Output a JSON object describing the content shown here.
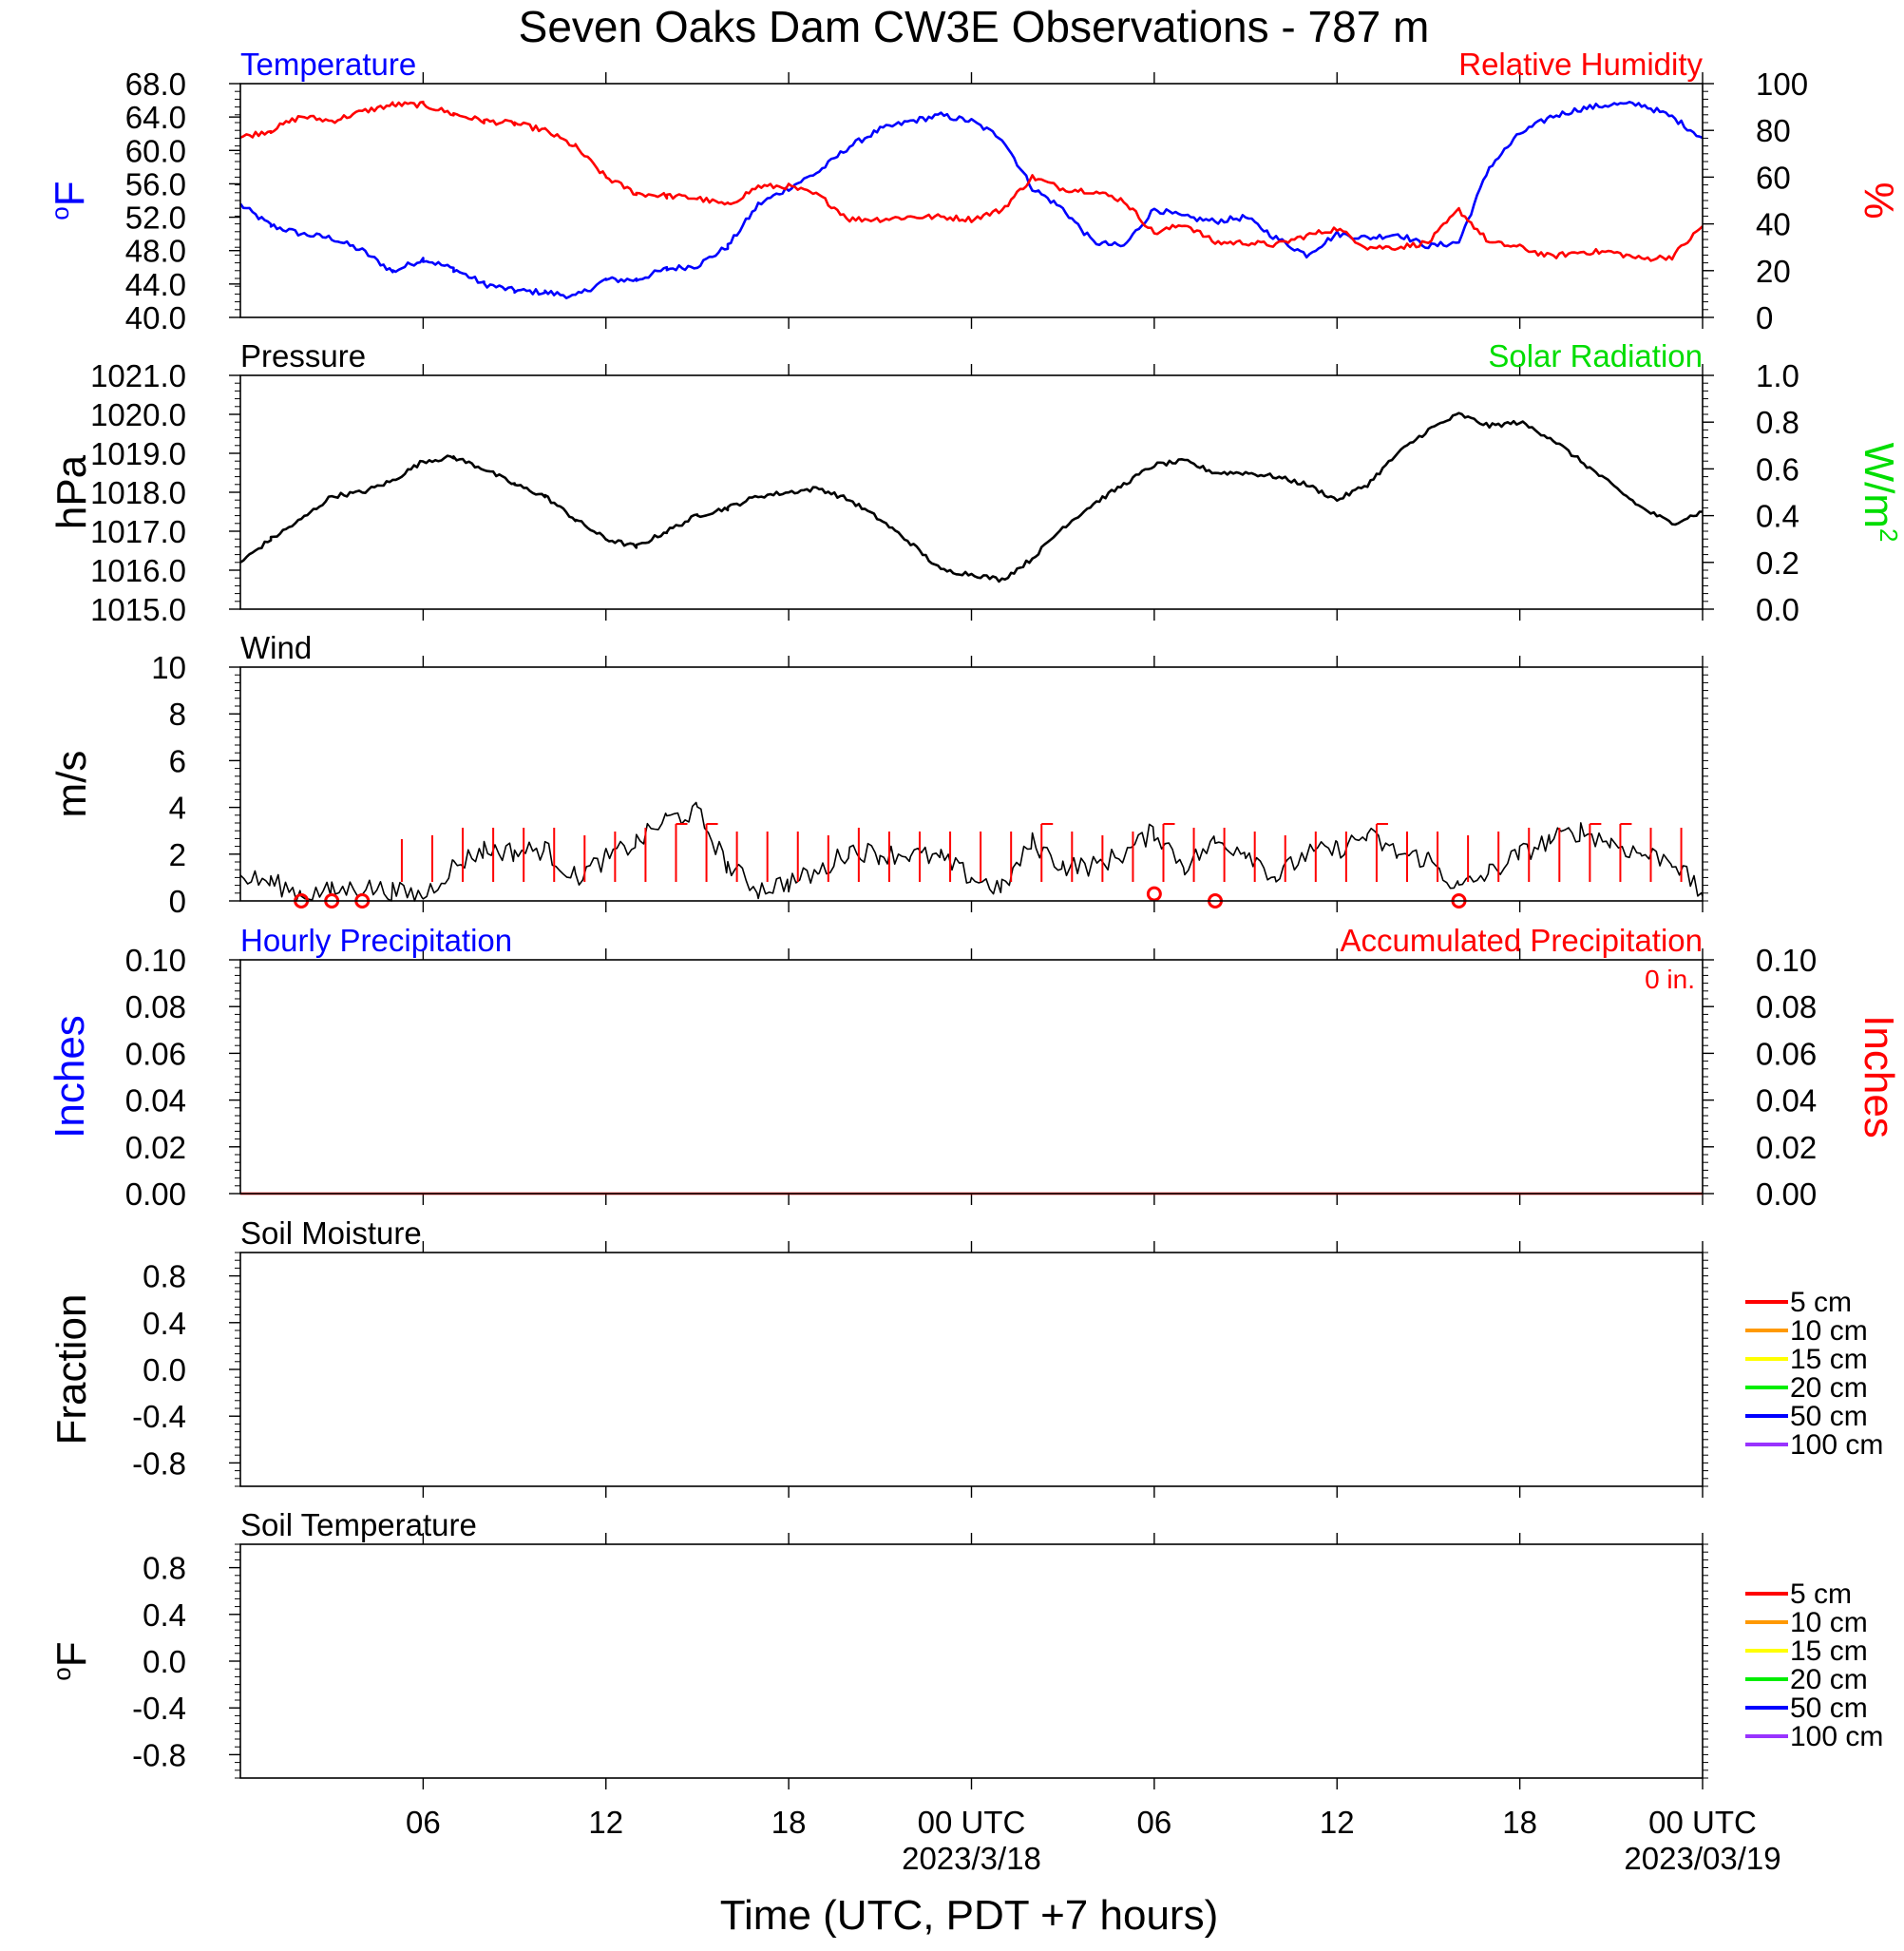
{
  "title": "Seven Oaks Dam CW3E Observations - 787 m",
  "xlabel": "Time (UTC, PDT +7 hours)",
  "x_ticks": [
    {
      "hour": 6,
      "label": "06",
      "sub": ""
    },
    {
      "hour": 12,
      "label": "12",
      "sub": ""
    },
    {
      "hour": 18,
      "label": "18",
      "sub": ""
    },
    {
      "hour": 24,
      "label": "00 UTC",
      "sub": "2023/3/18"
    },
    {
      "hour": 30,
      "label": "06",
      "sub": ""
    },
    {
      "hour": 36,
      "label": "12",
      "sub": ""
    },
    {
      "hour": 42,
      "label": "18",
      "sub": ""
    },
    {
      "hour": 48,
      "label": "00 UTC",
      "sub": "2023/03/19"
    }
  ],
  "chart_data": [
    {
      "type": "line",
      "panel": "temperature-humidity",
      "left_title": "Temperature",
      "right_title": "Relative Humidity",
      "left_ylabel": "oF",
      "right_ylabel": "%",
      "left_color": "#0000ff",
      "right_color": "#ff0000",
      "left_ylim": [
        40,
        68
      ],
      "right_ylim": [
        0,
        100
      ],
      "left_ticks": [
        "40.0",
        "44.0",
        "48.0",
        "52.0",
        "56.0",
        "60.0",
        "64.0",
        "68.0"
      ],
      "right_ticks": [
        "0",
        "20",
        "40",
        "60",
        "80",
        "100"
      ],
      "x_range_hours": [
        0,
        48
      ],
      "series": [
        {
          "name": "Temperature",
          "axis": "left",
          "color": "#0000ff",
          "x": [
            0,
            1,
            2,
            3,
            4,
            5,
            6,
            7,
            8,
            9,
            10,
            11,
            12,
            13,
            14,
            15,
            16,
            17,
            18,
            19,
            20,
            21,
            22,
            23,
            24,
            25,
            26,
            27,
            28,
            29,
            30,
            31,
            32,
            33,
            34,
            35,
            36,
            37,
            38,
            39,
            40,
            41,
            42,
            43,
            44,
            45,
            46,
            47,
            48
          ],
          "y": [
            53.5,
            51,
            50,
            49.5,
            48,
            45.5,
            47,
            45.8,
            44,
            43.2,
            43,
            42.5,
            44.5,
            44.5,
            45.8,
            46.2,
            48.5,
            53.5,
            55.5,
            57.5,
            60.5,
            62.5,
            63.5,
            64.2,
            63.5,
            61.5,
            55.5,
            53,
            49,
            48.5,
            53,
            52,
            51.5,
            52,
            49.5,
            47.5,
            50,
            49.5,
            50,
            48.5,
            49,
            58,
            62,
            64,
            65,
            65.5,
            65.5,
            64,
            61.5
          ]
        },
        {
          "name": "Relative Humidity",
          "axis": "right",
          "color": "#ff0000",
          "x": [
            0,
            1,
            2,
            3,
            4,
            5,
            6,
            7,
            8,
            9,
            10,
            11,
            12,
            13,
            14,
            15,
            16,
            17,
            18,
            19,
            20,
            21,
            22,
            23,
            24,
            25,
            26,
            27,
            28,
            29,
            30,
            31,
            32,
            33,
            34,
            35,
            36,
            37,
            38,
            39,
            40,
            41,
            42,
            43,
            44,
            45,
            46,
            47,
            48
          ],
          "y": [
            77,
            80,
            86,
            84,
            88,
            91,
            91,
            87,
            84,
            83,
            80,
            73,
            60,
            53,
            52,
            51,
            48,
            56,
            56,
            52,
            42,
            42,
            43,
            43,
            42,
            46,
            60,
            55,
            54,
            50,
            36,
            40,
            32,
            32,
            31,
            35,
            38,
            30,
            30,
            32,
            46,
            32,
            30,
            26,
            28,
            28,
            25,
            26,
            39
          ]
        }
      ]
    },
    {
      "type": "line",
      "panel": "pressure-solar",
      "left_title": "Pressure",
      "right_title": "Solar Radiation",
      "left_ylabel": "hPa",
      "right_ylabel": "W/m2",
      "left_color": "#000000",
      "right_color": "#00dd00",
      "left_ylim": [
        1015,
        1021
      ],
      "right_ylim": [
        0,
        1
      ],
      "left_ticks": [
        "1015.0",
        "1016.0",
        "1017.0",
        "1018.0",
        "1019.0",
        "1020.0",
        "1021.0"
      ],
      "right_ticks": [
        "0.0",
        "0.2",
        "0.4",
        "0.6",
        "0.8",
        "1.0"
      ],
      "x_range_hours": [
        0,
        48
      ],
      "series": [
        {
          "name": "Pressure",
          "axis": "left",
          "color": "#000000",
          "x": [
            0,
            1,
            2,
            3,
            4,
            5,
            6,
            7,
            8,
            9,
            10,
            11,
            12,
            13,
            14,
            15,
            16,
            17,
            18,
            19,
            20,
            21,
            22,
            23,
            24,
            25,
            26,
            27,
            28,
            29,
            30,
            31,
            32,
            33,
            34,
            35,
            36,
            37,
            38,
            39,
            40,
            41,
            42,
            43,
            44,
            45,
            46,
            47,
            48
          ],
          "y": [
            1016.2,
            1016.8,
            1017.3,
            1017.9,
            1018.0,
            1018.3,
            1018.8,
            1018.9,
            1018.6,
            1018.2,
            1017.9,
            1017.3,
            1016.8,
            1016.6,
            1017.0,
            1017.4,
            1017.6,
            1017.9,
            1018.0,
            1018.1,
            1017.8,
            1017.3,
            1016.7,
            1016.0,
            1015.9,
            1015.75,
            1016.3,
            1017.1,
            1017.7,
            1018.2,
            1018.7,
            1018.8,
            1018.5,
            1018.5,
            1018.4,
            1018.2,
            1017.8,
            1018.2,
            1019.0,
            1019.6,
            1020.0,
            1019.7,
            1019.8,
            1019.4,
            1018.8,
            1018.2,
            1017.6,
            1017.2,
            1017.5
          ]
        }
      ]
    },
    {
      "type": "line",
      "panel": "wind",
      "left_title": "Wind",
      "left_ylabel": "m/s",
      "left_ylim": [
        0,
        10
      ],
      "left_ticks": [
        "0",
        "2",
        "4",
        "6",
        "8",
        "10"
      ],
      "x_range_hours": [
        0,
        48
      ],
      "series": [
        {
          "name": "Wind",
          "axis": "left",
          "color": "#000000",
          "x": [
            0,
            1,
            2,
            3,
            4,
            5,
            6,
            7,
            8,
            9,
            10,
            11,
            12,
            13,
            14,
            15,
            16,
            17,
            18,
            19,
            20,
            21,
            22,
            23,
            24,
            25,
            26,
            27,
            28,
            29,
            30,
            31,
            32,
            33,
            34,
            35,
            36,
            37,
            38,
            39,
            40,
            41,
            42,
            43,
            44,
            45,
            46,
            47,
            48
          ],
          "y": [
            1.0,
            0.8,
            0.3,
            0.4,
            0.6,
            0.4,
            0.2,
            1.5,
            2.2,
            2.1,
            2.2,
            1.0,
            1.8,
            2.5,
            3.5,
            3.8,
            1.5,
            0.5,
            0.8,
            1.2,
            2.2,
            2.0,
            2.0,
            1.8,
            1.0,
            0.5,
            2.5,
            1.5,
            1.5,
            2.0,
            3.0,
            1.5,
            2.5,
            2.2,
            1.0,
            2.0,
            2.2,
            2.8,
            2.0,
            1.8,
            0.5,
            1.2,
            2.0,
            2.6,
            3.0,
            2.5,
            2.0,
            1.8,
            0.2
          ]
        },
        {
          "name": "Calm",
          "axis": "left",
          "color": "#ff0000",
          "marker": "circle",
          "x": [
            2,
            3,
            4,
            30,
            32,
            40
          ],
          "y": [
            0,
            0,
            0,
            0.3,
            0,
            0
          ]
        },
        {
          "name": "Wind barbs",
          "axis": "left",
          "color": "#ff0000",
          "marker": "barb",
          "x": [
            5,
            6,
            7,
            8,
            9,
            10,
            11,
            12,
            13,
            14,
            15,
            16,
            17,
            18,
            19,
            20,
            21,
            22,
            23,
            24,
            25,
            26,
            27,
            28,
            29,
            30,
            31,
            32,
            33,
            34,
            35,
            36,
            37,
            38,
            39,
            40,
            41,
            42,
            43,
            44,
            45,
            46,
            47
          ],
          "y": [
            0,
            1,
            3,
            3,
            3,
            3,
            1,
            2,
            3,
            4,
            4,
            2,
            2,
            2,
            1,
            3,
            2,
            2,
            2,
            2,
            2,
            4,
            2,
            1,
            2,
            4,
            3,
            3,
            2,
            1,
            2,
            2,
            4,
            2,
            2,
            1,
            2,
            3,
            3,
            4,
            4,
            3,
            3
          ]
        }
      ]
    },
    {
      "type": "line",
      "panel": "precipitation",
      "left_title": "Hourly Precipitation",
      "right_title": "Accumulated Precipitation",
      "annotation": "0 in.",
      "left_ylabel": "Inches",
      "right_ylabel": "Inches",
      "left_color": "#0000ff",
      "right_color": "#ff0000",
      "left_ylim": [
        0,
        0.1
      ],
      "right_ylim": [
        0,
        0.1
      ],
      "left_ticks": [
        "0.00",
        "0.02",
        "0.04",
        "0.06",
        "0.08",
        "0.10"
      ],
      "right_ticks": [
        "0.00",
        "0.02",
        "0.04",
        "0.06",
        "0.08",
        "0.10"
      ],
      "x_range_hours": [
        0,
        48
      ],
      "series": [
        {
          "name": "Accumulated Precipitation",
          "axis": "right",
          "color": "#ff0000",
          "x": [
            0,
            48
          ],
          "y": [
            0,
            0
          ]
        }
      ]
    },
    {
      "type": "line",
      "panel": "soil-moisture",
      "left_title": "Soil Moisture",
      "left_ylabel": "Fraction",
      "left_ylim": [
        -1,
        1
      ],
      "left_ticks": [
        "-0.8",
        "-0.4",
        "0.0",
        "0.4",
        "0.8"
      ],
      "x_range_hours": [
        0,
        48
      ],
      "legend": [
        "5 cm",
        "10 cm",
        "15 cm",
        "20 cm",
        "50 cm",
        "100 cm"
      ],
      "legend_colors": [
        "#ff0000",
        "#ff9900",
        "#ffff00",
        "#00ee00",
        "#0000ff",
        "#9933ff"
      ],
      "series": []
    },
    {
      "type": "line",
      "panel": "soil-temperature",
      "left_title": "Soil Temperature",
      "left_ylabel": "oF",
      "left_ylim": [
        -1,
        1
      ],
      "left_ticks": [
        "-0.8",
        "-0.4",
        "0.0",
        "0.4",
        "0.8"
      ],
      "x_range_hours": [
        0,
        48
      ],
      "legend": [
        "5 cm",
        "10 cm",
        "15 cm",
        "20 cm",
        "50 cm",
        "100 cm"
      ],
      "legend_colors": [
        "#ff0000",
        "#ff9900",
        "#ffff00",
        "#00ee00",
        "#0000ff",
        "#9933ff"
      ],
      "series": []
    }
  ]
}
